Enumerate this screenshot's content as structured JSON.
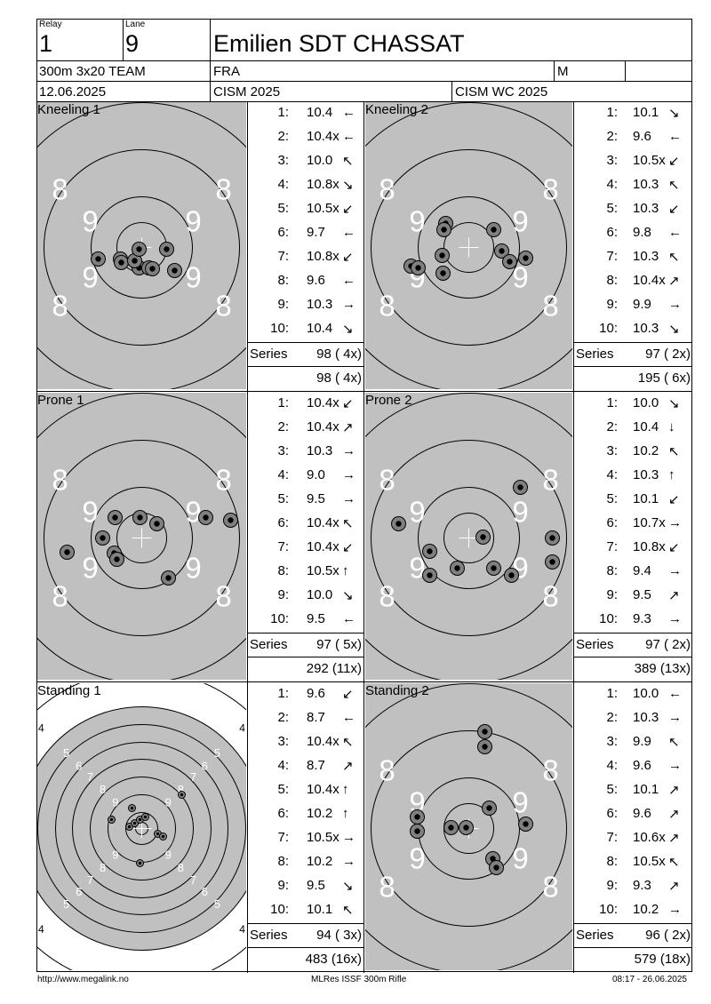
{
  "header": {
    "relay_label": "Relay",
    "relay": "1",
    "lane_label": "Lane",
    "lane": "9",
    "name": "Emilien SDT CHASSAT",
    "event": "300m 3x20 TEAM",
    "nation": "FRA",
    "gender": "M",
    "date": "12.06.2025",
    "competition": "CISM 2025",
    "match": "CISM WC 2025"
  },
  "series_label": "Series",
  "panels": [
    {
      "title": "Kneeling 1",
      "ring_style": "prone",
      "shots": [
        {
          "n": "1:",
          "v": "10.4",
          "a": "←"
        },
        {
          "n": "2:",
          "v": "10.4x",
          "a": "←"
        },
        {
          "n": "3:",
          "v": "10.0",
          "a": "↖"
        },
        {
          "n": "4:",
          "v": "10.8x",
          "a": "↘"
        },
        {
          "n": "5:",
          "v": "10.5x",
          "a": "↙"
        },
        {
          "n": "6:",
          "v": "9.7",
          "a": "←"
        },
        {
          "n": "7:",
          "v": "10.8x",
          "a": "↙"
        },
        {
          "n": "8:",
          "v": "9.6",
          "a": "←"
        },
        {
          "n": "9:",
          "v": "10.3",
          "a": "→"
        },
        {
          "n": "10:",
          "v": "10.4",
          "a": "↘"
        }
      ],
      "series": "98 ( 4x)",
      "total": "98 ( 4x)"
    },
    {
      "title": "Kneeling 2",
      "ring_style": "prone",
      "shots": [
        {
          "n": "1:",
          "v": "10.1",
          "a": "↘"
        },
        {
          "n": "2:",
          "v": "9.6",
          "a": "←"
        },
        {
          "n": "3:",
          "v": "10.5x",
          "a": "↙"
        },
        {
          "n": "4:",
          "v": "10.3",
          "a": "↖"
        },
        {
          "n": "5:",
          "v": "10.3",
          "a": "↙"
        },
        {
          "n": "6:",
          "v": "9.8",
          "a": "←"
        },
        {
          "n": "7:",
          "v": "10.3",
          "a": "↖"
        },
        {
          "n": "8:",
          "v": "10.4x",
          "a": "↗"
        },
        {
          "n": "9:",
          "v": "9.9",
          "a": "→"
        },
        {
          "n": "10:",
          "v": "10.3",
          "a": "↘"
        }
      ],
      "series": "97 ( 2x)",
      "total": "195 ( 6x)"
    },
    {
      "title": "Prone 1",
      "ring_style": "prone",
      "shots": [
        {
          "n": "1:",
          "v": "10.4x",
          "a": "↙"
        },
        {
          "n": "2:",
          "v": "10.4x",
          "a": "↗"
        },
        {
          "n": "3:",
          "v": "10.3",
          "a": "→"
        },
        {
          "n": "4:",
          "v": "9.0",
          "a": "→"
        },
        {
          "n": "5:",
          "v": "9.5",
          "a": "→"
        },
        {
          "n": "6:",
          "v": "10.4x",
          "a": "↖"
        },
        {
          "n": "7:",
          "v": "10.4x",
          "a": "↙"
        },
        {
          "n": "8:",
          "v": "10.5x",
          "a": "↑"
        },
        {
          "n": "9:",
          "v": "10.0",
          "a": "↘"
        },
        {
          "n": "10:",
          "v": "9.5",
          "a": "←"
        }
      ],
      "series": "97 ( 5x)",
      "total": "292 (11x)"
    },
    {
      "title": "Prone 2",
      "ring_style": "prone",
      "shots": [
        {
          "n": "1:",
          "v": "10.0",
          "a": "↘"
        },
        {
          "n": "2:",
          "v": "10.4",
          "a": "↓"
        },
        {
          "n": "3:",
          "v": "10.2",
          "a": "↖"
        },
        {
          "n": "4:",
          "v": "10.3",
          "a": "↑"
        },
        {
          "n": "5:",
          "v": "10.1",
          "a": "↙"
        },
        {
          "n": "6:",
          "v": "10.7x",
          "a": "→"
        },
        {
          "n": "7:",
          "v": "10.8x",
          "a": "↙"
        },
        {
          "n": "8:",
          "v": "9.4",
          "a": "→"
        },
        {
          "n": "9:",
          "v": "9.5",
          "a": "↗"
        },
        {
          "n": "10:",
          "v": "9.3",
          "a": "→"
        }
      ],
      "series": "97 ( 2x)",
      "total": "389 (13x)"
    },
    {
      "title": "Standing 1",
      "ring_style": "standing",
      "shots": [
        {
          "n": "1:",
          "v": "9.6",
          "a": "↙"
        },
        {
          "n": "2:",
          "v": "8.7",
          "a": "←"
        },
        {
          "n": "3:",
          "v": "10.4x",
          "a": "↖"
        },
        {
          "n": "4:",
          "v": "8.7",
          "a": "↗"
        },
        {
          "n": "5:",
          "v": "10.4x",
          "a": "↑"
        },
        {
          "n": "6:",
          "v": "10.2",
          "a": "↑"
        },
        {
          "n": "7:",
          "v": "10.5x",
          "a": "→"
        },
        {
          "n": "8:",
          "v": "10.2",
          "a": "→"
        },
        {
          "n": "9:",
          "v": "9.5",
          "a": "↘"
        },
        {
          "n": "10:",
          "v": "10.1",
          "a": "↖"
        }
      ],
      "series": "94 ( 3x)",
      "total": "483 (16x)"
    },
    {
      "title": "Standing 2",
      "ring_style": "prone",
      "shots": [
        {
          "n": "1:",
          "v": "10.0",
          "a": "←"
        },
        {
          "n": "2:",
          "v": "10.3",
          "a": "→"
        },
        {
          "n": "3:",
          "v": "9.9",
          "a": "↖"
        },
        {
          "n": "4:",
          "v": "9.6",
          "a": "→"
        },
        {
          "n": "5:",
          "v": "10.1",
          "a": "↗"
        },
        {
          "n": "6:",
          "v": "9.6",
          "a": "↗"
        },
        {
          "n": "7:",
          "v": "10.6x",
          "a": "↗"
        },
        {
          "n": "8:",
          "v": "10.5x",
          "a": "↖"
        },
        {
          "n": "9:",
          "v": "9.3",
          "a": "↗"
        },
        {
          "n": "10:",
          "v": "10.2",
          "a": "→"
        }
      ],
      "series": "96 ( 2x)",
      "total": "579 (18x)"
    }
  ],
  "footer": {
    "url": "http://www.megalink.no",
    "software": "MLRes ISSF 300m Rifle",
    "timestamp": "08:17 - 26.06.2025"
  },
  "colors": {
    "target_gray": "#c0c0c0",
    "shot_fill": "#808080"
  }
}
